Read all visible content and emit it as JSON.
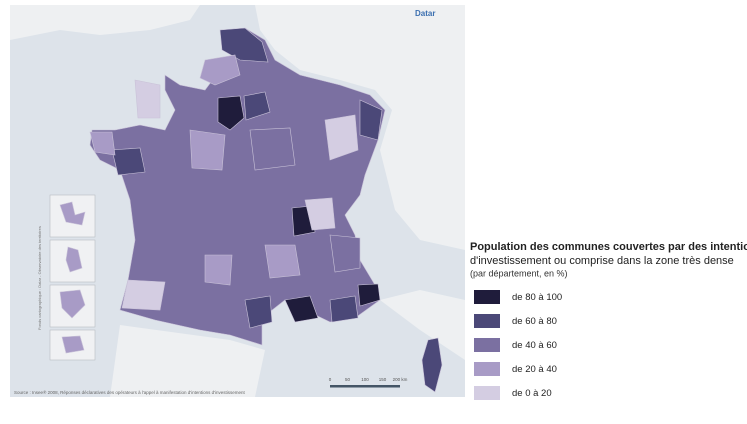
{
  "header": {
    "brand": "Datar"
  },
  "legend": {
    "title": [
      "Population des communes couvertes par des intentions",
      "d'investissement ou comprise dans la zone très dense"
    ],
    "subtitle": "(par département, en %)",
    "items": [
      {
        "label": "de 80 à 100",
        "color": "#1f1c3b"
      },
      {
        "label": "de 60 à 80",
        "color": "#4b4878"
      },
      {
        "label": "de 40 à 60",
        "color": "#7b70a1"
      },
      {
        "label": "de 20 à 40",
        "color": "#a89bc6"
      },
      {
        "label": "de 0 à 20",
        "color": "#d4cde2"
      }
    ]
  },
  "scale": {
    "labels": [
      "0",
      "50",
      "100",
      "150",
      "200 km"
    ]
  },
  "source": "Source : Insee® 2008, Réponses déclaratives des opérateurs à l'appel à manifestation d'intentions d'investissement",
  "side_note": "Fonds cartographique : Datar - Observatoire des territoires"
}
